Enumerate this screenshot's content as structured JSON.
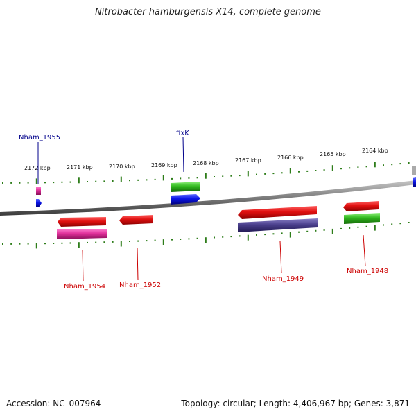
{
  "title": "Nitrobacter hamburgensis X14, complete genome",
  "accession": "Accession: NC_007964",
  "summary": "Topology: circular; Length: 4,406,967 bp; Genes: 3,871",
  "ticks": [
    "2172 kbp",
    "2171 kbp",
    "2170 kbp",
    "2169 kbp",
    "2168 kbp",
    "2167 kbp",
    "2166 kbp",
    "2165 kbp",
    "2164 kbp"
  ],
  "gene_labels": {
    "nham1955": "Nham_1955",
    "fixk": "fixK",
    "nham1954": "Nham_1954",
    "nham1952": "Nham_1952",
    "nham1949": "Nham_1949",
    "nham1948": "Nham_1948"
  },
  "colors": {
    "label_forward": "#00008b",
    "label_reverse": "#cc0000",
    "tick": "#2e7d1a",
    "cds_red": "#e01010",
    "cds_pink": "#e0309a",
    "cds_blue": "#0a14e6",
    "cds_green": "#30b81e",
    "cds_purple": "#4a3f8c",
    "backbone": "#8c8c8c"
  }
}
